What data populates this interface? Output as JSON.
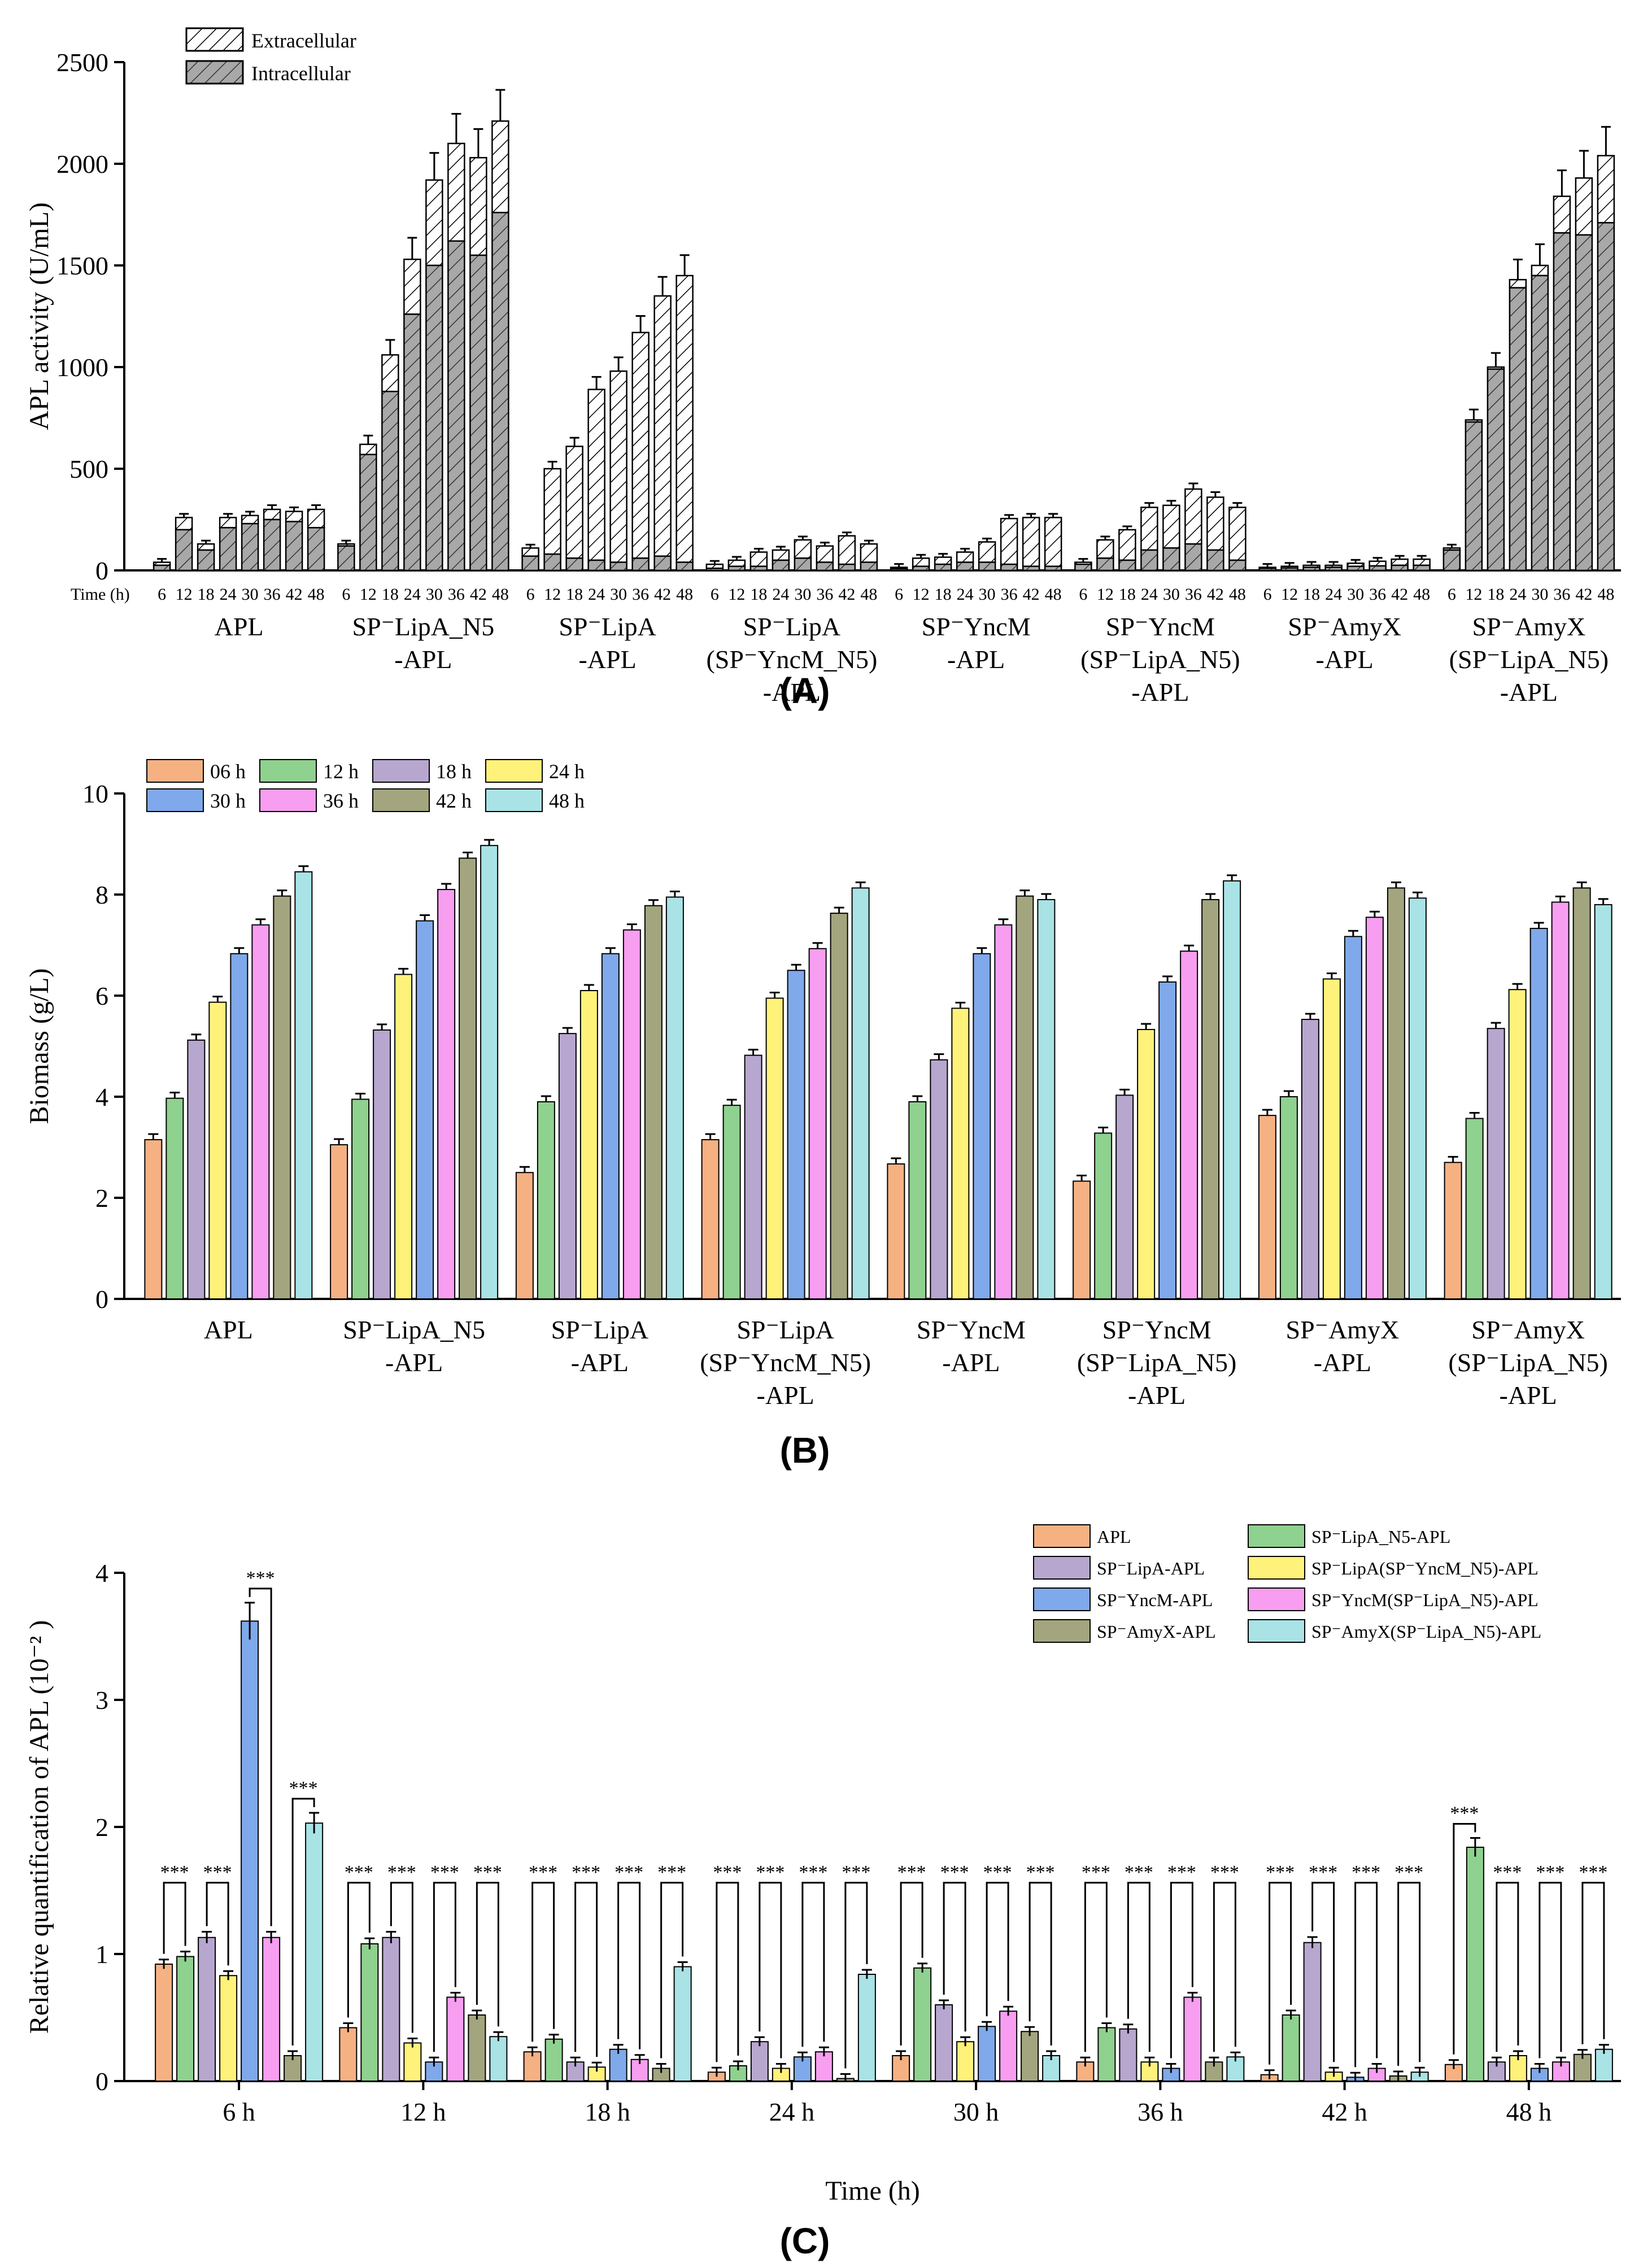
{
  "figure_labels": {
    "a": "(A)",
    "b": "(B)",
    "c": "(C)"
  },
  "colors": {
    "extracellular": "#ffffff",
    "intracellular": "#a8a8a8",
    "time_06": "#f6b183",
    "time_12": "#8fd18f",
    "time_18": "#b7a7cf",
    "time_24": "#fff27a",
    "time_30": "#7fa9ea",
    "time_36": "#f79ef0",
    "time_42": "#a3a57e",
    "time_48": "#a9e3e6"
  },
  "chart_data": [
    {
      "id": "A",
      "type": "bar",
      "stacked": true,
      "ylabel": "APL activity (U/mL)",
      "ylim": [
        0,
        2500
      ],
      "yticks": [
        "0",
        "500",
        "1000",
        "1500",
        "2000",
        "2500"
      ],
      "time_axis_label": "Time (h)",
      "time_points": [
        "6",
        "12",
        "18",
        "24",
        "30",
        "36",
        "42",
        "48"
      ],
      "legend": [
        "Extracellular",
        "Intracellular"
      ],
      "groups": [
        {
          "label_lines": [
            "APL"
          ],
          "intracellular": [
            25,
            200,
            100,
            210,
            230,
            250,
            240,
            210
          ],
          "total": [
            40,
            260,
            130,
            260,
            270,
            300,
            290,
            300
          ]
        },
        {
          "label_lines": [
            "SP⁻LipA_N5",
            "-APL"
          ],
          "intracellular": [
            120,
            570,
            880,
            1260,
            1500,
            1620,
            1550,
            1760
          ],
          "total": [
            130,
            620,
            1060,
            1530,
            1920,
            2100,
            2030,
            2210
          ]
        },
        {
          "label_lines": [
            "SP⁻LipA",
            "-APL"
          ],
          "intracellular": [
            70,
            80,
            60,
            50,
            40,
            60,
            70,
            40
          ],
          "total": [
            110,
            500,
            610,
            890,
            980,
            1170,
            1350,
            1450
          ]
        },
        {
          "label_lines": [
            "SP⁻LipA",
            "(SP⁻YncM_N5)",
            "-APL"
          ],
          "intracellular": [
            10,
            20,
            20,
            50,
            60,
            40,
            30,
            40
          ],
          "total": [
            30,
            50,
            90,
            100,
            150,
            120,
            170,
            130
          ]
        },
        {
          "label_lines": [
            "SP⁻YncM",
            "-APL"
          ],
          "intracellular": [
            8,
            20,
            30,
            40,
            40,
            30,
            20,
            20
          ],
          "total": [
            15,
            60,
            65,
            90,
            140,
            255,
            260,
            260
          ]
        },
        {
          "label_lines": [
            "SP⁻YncM",
            "(SP⁻LipA_N5)",
            "-APL"
          ],
          "intracellular": [
            30,
            60,
            50,
            100,
            110,
            130,
            100,
            50
          ],
          "total": [
            40,
            150,
            200,
            310,
            320,
            400,
            360,
            310
          ]
        },
        {
          "label_lines": [
            "SP⁻AmyX",
            "-APL"
          ],
          "intracellular": [
            10,
            12,
            15,
            15,
            20,
            22,
            25,
            25
          ],
          "total": [
            15,
            20,
            25,
            25,
            35,
            45,
            55,
            55
          ]
        },
        {
          "label_lines": [
            "SP⁻AmyX",
            "(SP⁻LipA_N5)",
            "-APL"
          ],
          "intracellular": [
            100,
            730,
            990,
            1390,
            1450,
            1660,
            1650,
            1710
          ],
          "total": [
            110,
            740,
            1000,
            1430,
            1500,
            1840,
            1930,
            2040
          ]
        }
      ]
    },
    {
      "id": "B",
      "type": "bar",
      "ylabel": "Biomass (g/L)",
      "ylim": [
        0,
        10
      ],
      "yticks": [
        "0",
        "2",
        "4",
        "6",
        "8",
        "10"
      ],
      "series_names": [
        "06 h",
        "12 h",
        "18 h",
        "24 h",
        "30 h",
        "36 h",
        "42 h",
        "48 h"
      ],
      "groups": [
        {
          "label_lines": [
            "APL"
          ],
          "values": [
            3.15,
            3.97,
            5.12,
            5.87,
            6.83,
            7.4,
            7.97,
            8.45
          ]
        },
        {
          "label_lines": [
            "SP⁻LipA_N5",
            "-APL"
          ],
          "values": [
            3.05,
            3.95,
            5.32,
            6.42,
            7.48,
            8.1,
            8.72,
            8.97
          ]
        },
        {
          "label_lines": [
            "SP⁻LipA",
            "-APL"
          ],
          "values": [
            2.5,
            3.9,
            5.25,
            6.1,
            6.83,
            7.3,
            7.78,
            7.95
          ]
        },
        {
          "label_lines": [
            "SP⁻LipA",
            "(SP⁻YncM_N5)",
            "-APL"
          ],
          "values": [
            3.15,
            3.83,
            4.82,
            5.95,
            6.5,
            6.93,
            7.63,
            8.13
          ]
        },
        {
          "label_lines": [
            "SP⁻YncM",
            "-APL"
          ],
          "values": [
            2.67,
            3.9,
            4.73,
            5.75,
            6.83,
            7.4,
            7.97,
            7.9
          ]
        },
        {
          "label_lines": [
            "SP⁻YncM",
            "(SP⁻LipA_N5)",
            "-APL"
          ],
          "values": [
            2.33,
            3.28,
            4.03,
            5.33,
            6.27,
            6.88,
            7.9,
            8.27
          ]
        },
        {
          "label_lines": [
            "SP⁻AmyX",
            "-APL"
          ],
          "values": [
            3.63,
            4.0,
            5.53,
            6.33,
            7.17,
            7.55,
            8.13,
            7.93
          ]
        },
        {
          "label_lines": [
            "SP⁻AmyX",
            "(SP⁻LipA_N5)",
            "-APL"
          ],
          "values": [
            2.7,
            3.57,
            5.35,
            6.12,
            7.33,
            7.85,
            8.13,
            7.8
          ]
        }
      ]
    },
    {
      "id": "C",
      "type": "bar",
      "ylabel": "Relative quantification  of APL (10⁻² )",
      "xlabel": "Time (h)",
      "ylim": [
        0,
        4
      ],
      "yticks": [
        "0",
        "1",
        "2",
        "3",
        "4"
      ],
      "categories": [
        "6 h",
        "12 h",
        "18 h",
        "24 h",
        "30 h",
        "36 h",
        "42 h",
        "48 h"
      ],
      "significance_label": "***",
      "series": [
        {
          "name": "APL",
          "values": [
            0.92,
            0.42,
            0.23,
            0.07,
            0.2,
            0.15,
            0.05,
            0.13
          ]
        },
        {
          "name": "SP⁻LipA_N5-APL",
          "values": [
            0.98,
            1.08,
            0.33,
            0.12,
            0.89,
            0.42,
            0.52,
            1.84
          ]
        },
        {
          "name": "SP⁻LipA-APL",
          "values": [
            1.13,
            1.13,
            0.15,
            0.31,
            0.6,
            0.41,
            1.09,
            0.15
          ]
        },
        {
          "name": "SP⁻LipA(SP⁻YncM_N5)-APL",
          "values": [
            0.83,
            0.3,
            0.11,
            0.1,
            0.31,
            0.15,
            0.07,
            0.2
          ]
        },
        {
          "name": "SP⁻YncM-APL",
          "values": [
            3.62,
            0.15,
            0.25,
            0.19,
            0.43,
            0.1,
            0.03,
            0.1
          ]
        },
        {
          "name": "SP⁻YncM(SP⁻LipA_N5)-APL",
          "values": [
            1.13,
            0.66,
            0.17,
            0.23,
            0.55,
            0.66,
            0.1,
            0.15
          ]
        },
        {
          "name": "SP⁻AmyX-APL",
          "values": [
            0.2,
            0.52,
            0.1,
            0.02,
            0.39,
            0.15,
            0.04,
            0.21
          ]
        },
        {
          "name": "SP⁻AmyX(SP⁻LipA_N5)-APL",
          "values": [
            2.03,
            0.35,
            0.9,
            0.84,
            0.2,
            0.19,
            0.07,
            0.25
          ]
        }
      ],
      "legend_columns": [
        [
          "APL",
          "SP⁻LipA-APL",
          "SP⁻YncM-APL",
          "SP⁻AmyX-APL"
        ],
        [
          "SP⁻LipA_N5-APL",
          "SP⁻LipA(SP⁻YncM_N5)-APL",
          "SP⁻YncM(SP⁻LipA_N5)-APL",
          "SP⁻AmyX(SP⁻LipA_N5)-APL"
        ]
      ]
    }
  ]
}
